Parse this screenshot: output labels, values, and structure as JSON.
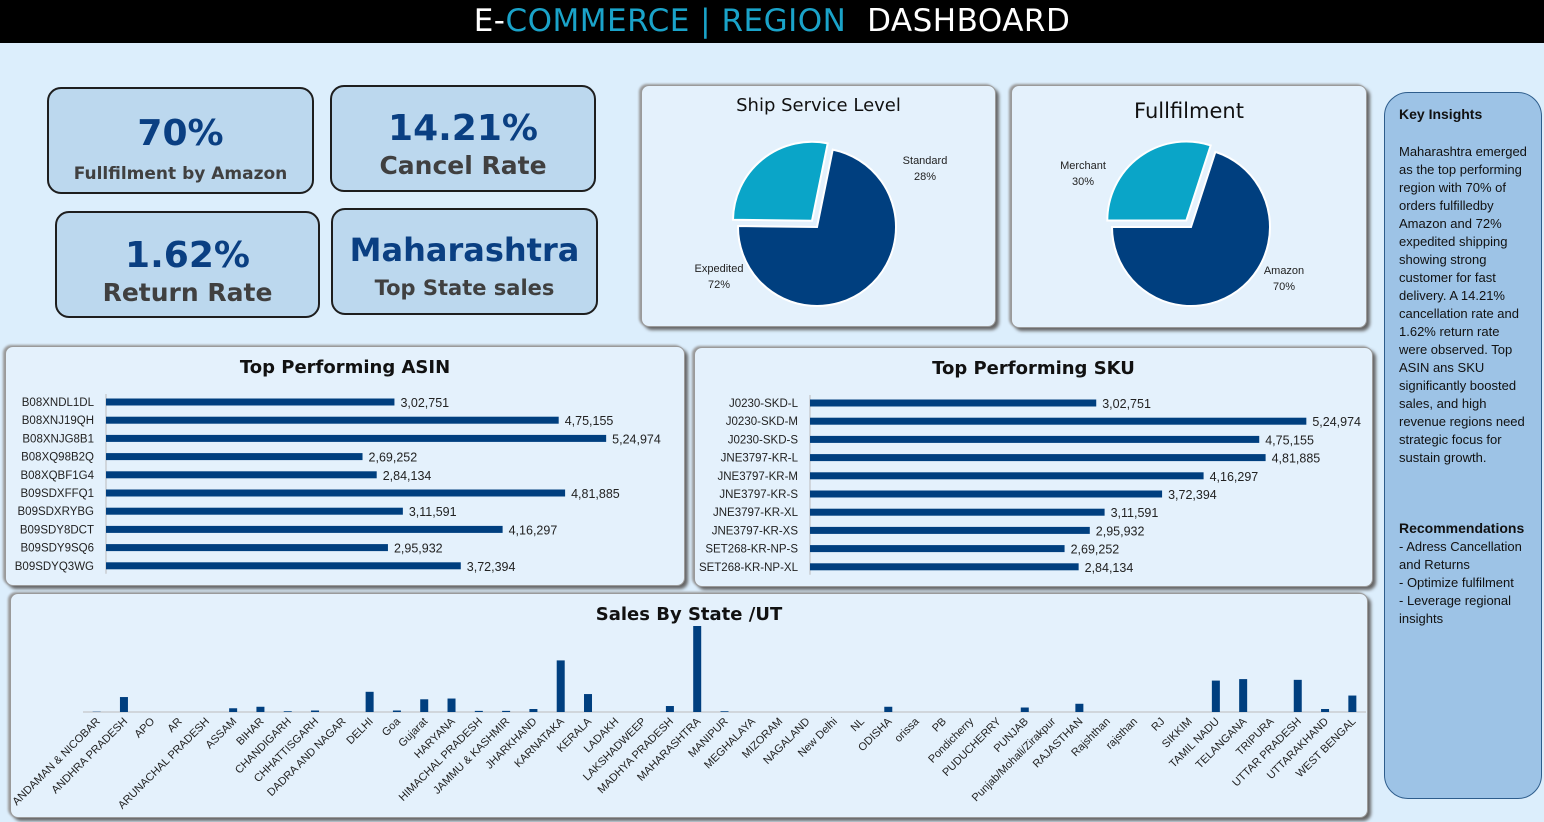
{
  "header": {
    "part1": "E-",
    "part2": "COMMERCE",
    "sep": " | ",
    "part3": "REGION",
    "part4": "DASHBOARD"
  },
  "kpis": [
    {
      "value": "70%",
      "label": "Fullfilment by Amazon"
    },
    {
      "value": "14.21%",
      "label": "Cancel Rate"
    },
    {
      "value": "1.62%",
      "label": "Return Rate"
    },
    {
      "value": "Maharashtra",
      "label": "Top State sales"
    }
  ],
  "insights": {
    "title": "Key Insights",
    "text": "Maharashtra emerged as the top performing region with 70% of orders fulfilledby Amazon and 72% expedited shipping showing strong customer for fast delivery. A 14.21% cancellation rate and 1.62% return rate were observed. Top ASIN ans SKU  significantly boosted sales, and high revenue regions need strategic focus for sustain growth.",
    "rec_title": "Recommendations",
    "recs": [
      "- Adress Cancellation and Returns",
      "- Optimize fulfilment",
      "- Leverage regional insights"
    ]
  },
  "colors": {
    "dark": "#003f7f",
    "light": "#0aa5c8",
    "kpi_text": "#0a3f82"
  },
  "chart_data": [
    {
      "type": "pie",
      "title": "Ship Service Level",
      "slices": [
        {
          "label": "Expedited",
          "value": 72,
          "pct": "72%"
        },
        {
          "label": "Standard",
          "value": 28,
          "pct": "28%"
        }
      ]
    },
    {
      "type": "pie",
      "title": "Fullfilment",
      "slices": [
        {
          "label": "Amazon",
          "value": 70,
          "pct": "70%"
        },
        {
          "label": "Merchant",
          "value": 30,
          "pct": "30%"
        }
      ]
    },
    {
      "type": "bar",
      "orientation": "horizontal",
      "title": "Top Performing ASIN",
      "categories": [
        "B08XNDL1DL",
        "B08XNJ19QH",
        "B08XNJG8B1",
        "B08XQ98B2Q",
        "B08XQBF1G4",
        "B09SDXFFQ1",
        "B09SDXRYBG",
        "B09SDY8DCT",
        "B09SDY9SQ6",
        "B09SDYQ3WG"
      ],
      "values": [
        302751,
        475155,
        524974,
        269252,
        284134,
        481885,
        311591,
        416297,
        295932,
        372394
      ],
      "labels": [
        "3,02,751",
        "4,75,155",
        "5,24,974",
        "2,69,252",
        "2,84,134",
        "4,81,885",
        "3,11,591",
        "4,16,297",
        "2,95,932",
        "3,72,394"
      ],
      "xlim": [
        0,
        550000
      ]
    },
    {
      "type": "bar",
      "orientation": "horizontal",
      "title": "Top Performing SKU",
      "categories": [
        "J0230-SKD-L",
        "J0230-SKD-M",
        "J0230-SKD-S",
        "JNE3797-KR-L",
        "JNE3797-KR-M",
        "JNE3797-KR-S",
        "JNE3797-KR-XL",
        "JNE3797-KR-XS",
        "SET268-KR-NP-S",
        "SET268-KR-NP-XL"
      ],
      "values": [
        302751,
        524974,
        475155,
        481885,
        416297,
        372394,
        311591,
        295932,
        269252,
        284134
      ],
      "labels": [
        "3,02,751",
        "5,24,974",
        "4,75,155",
        "4,81,885",
        "4,16,297",
        "3,72,394",
        "3,11,591",
        "2,95,932",
        "2,69,252",
        "2,84,134"
      ],
      "xlim": [
        0,
        550000
      ]
    },
    {
      "type": "bar",
      "title": "Sales By State /UT",
      "categories": [
        "ANDAMAN & NICOBAR",
        "ANDHRA PRADESH",
        "APO",
        "AR",
        "ARUNACHAL PRADESH",
        "ASSAM",
        "BIHAR",
        "CHANDIGARH",
        "CHHATTISGARH",
        "DADRA AND NAGAR",
        "DELHI",
        "Goa",
        "Gujarat",
        "HARYANA",
        "HIMACHAL PRADESH",
        "JAMMU & KASHMIR",
        "JHARKHAND",
        "KARNATAKA",
        "KERALA",
        "LADAKH",
        "LAKSHADWEEP",
        "MADHYA PRADESH",
        "MAHARASHTRA",
        "MANIPUR",
        "MEGHALAYA",
        "MIZORAM",
        "NAGALAND",
        "New Delhi",
        "NL",
        "ODISHA",
        "orissa",
        "PB",
        "Pondicherry",
        "PUDUCHERRY",
        "PUNJAB",
        "Punjab/Mohali/Zirakpur",
        "RAJASTHAN",
        "Rajshthan",
        "rajsthan",
        "RJ",
        "SIKKIM",
        "TAMIL NADU",
        "TELANGANA",
        "TRIPURA",
        "UTTAR PRADESH",
        "UTTARAKHAND",
        "WEST BENGAL"
      ],
      "values": [
        0.4,
        20,
        0,
        0,
        0,
        5,
        7,
        1,
        2,
        0,
        27,
        2,
        17,
        18,
        1.5,
        1.5,
        4,
        69,
        24,
        0,
        0,
        8,
        115,
        1,
        0,
        0,
        0,
        0,
        0,
        7,
        0,
        0,
        0,
        0,
        6,
        0,
        11,
        0,
        0,
        0,
        0,
        42,
        44,
        0,
        43,
        4,
        22
      ],
      "ylim": [
        0,
        115
      ]
    }
  ]
}
